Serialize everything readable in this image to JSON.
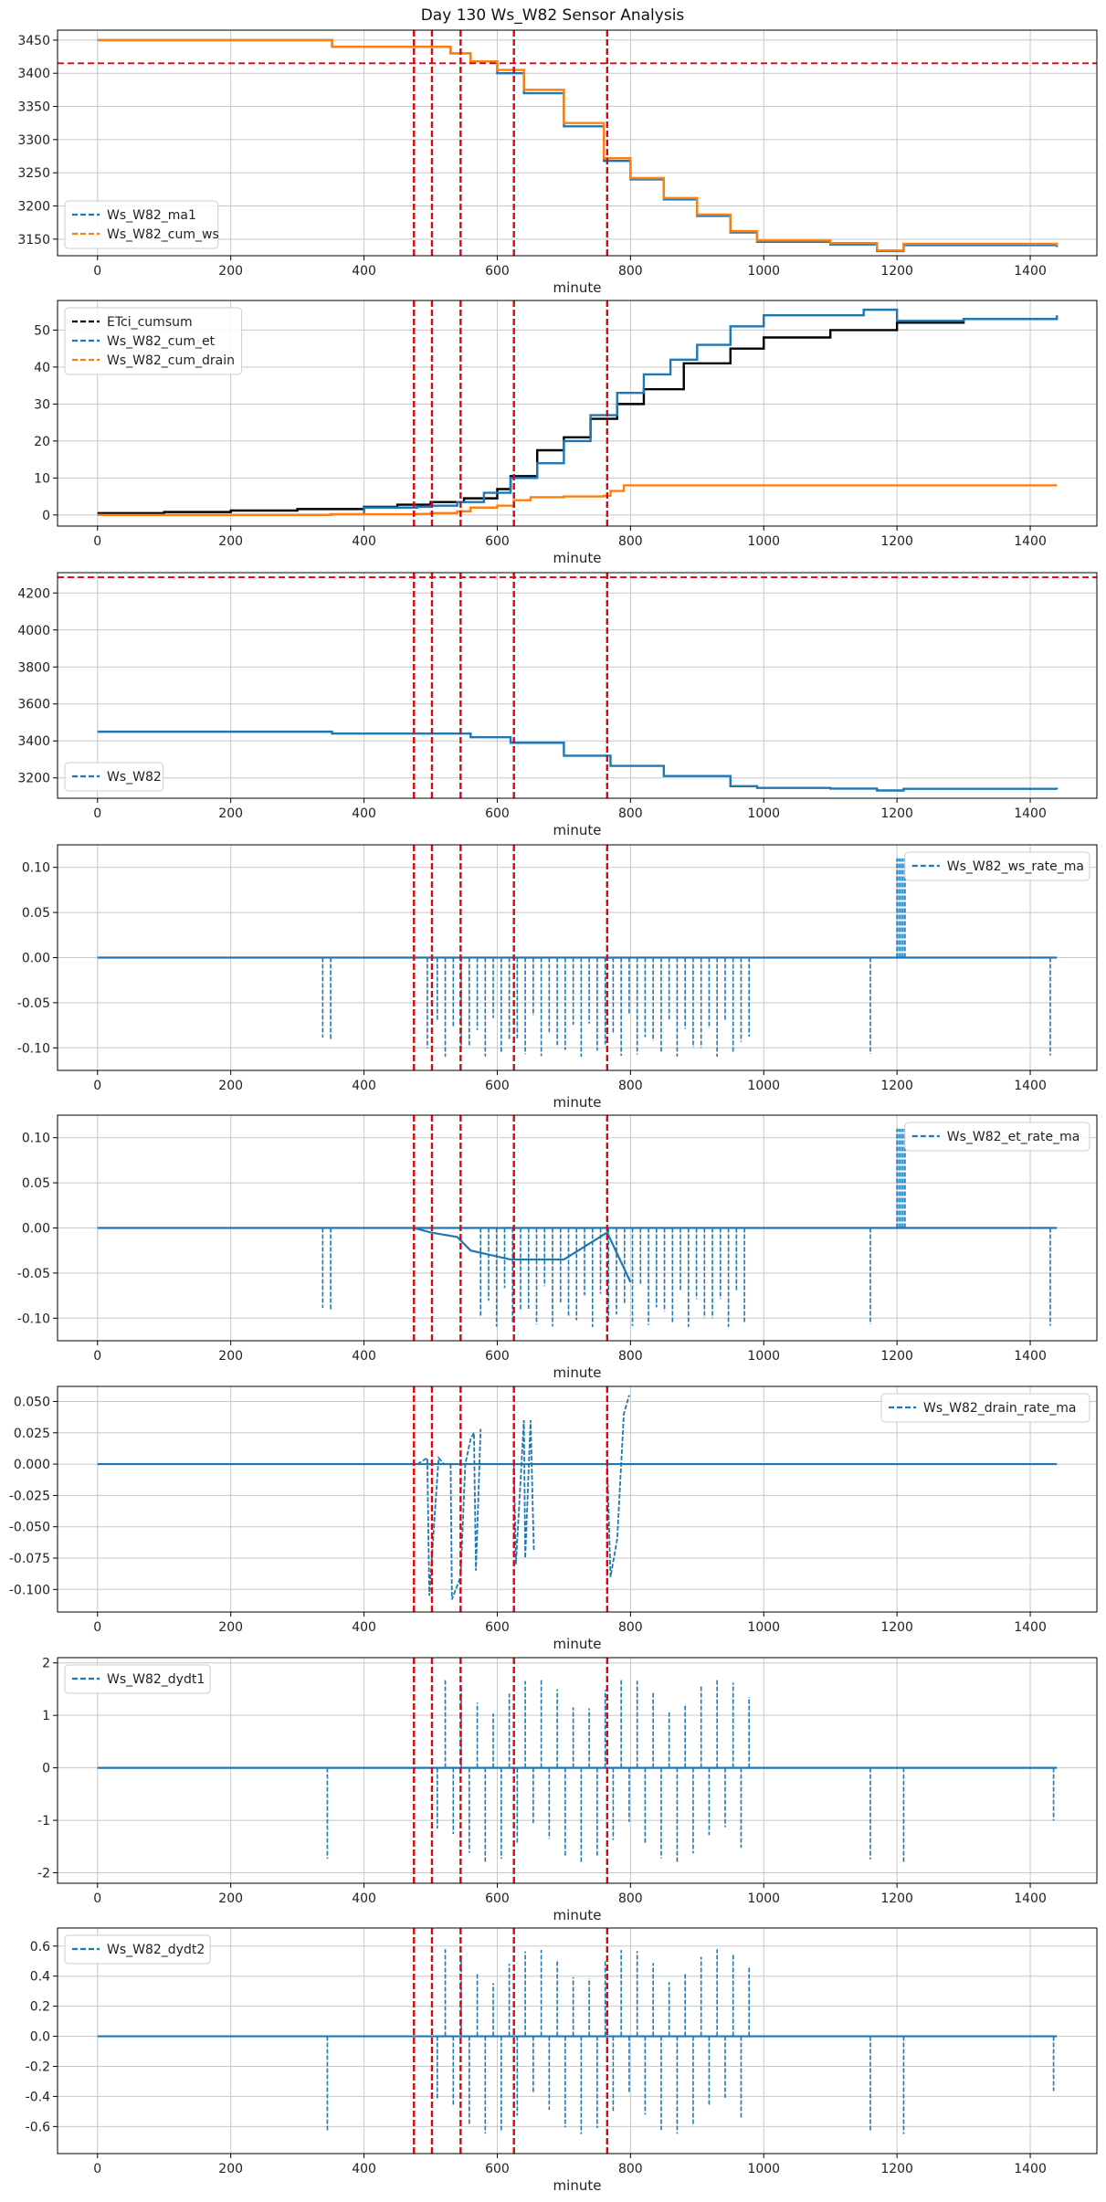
{
  "chart_data": {
    "type": "line",
    "title": "Day 130 Ws_W82 Sensor Analysis",
    "event_lines_x": [
      475,
      502,
      545,
      625,
      765
    ],
    "colors": {
      "blue": "#1f77b4",
      "orange": "#ff7f0e",
      "black": "#000000",
      "red": "#e8000b",
      "grid": "#c8c8c8"
    },
    "panels": [
      {
        "xlabel": "minute",
        "xlim": [
          -60,
          1500
        ],
        "ylim": [
          3125,
          3465
        ],
        "xticks": [
          0,
          200,
          400,
          600,
          800,
          1000,
          1200,
          1400
        ],
        "yticks": [
          3150,
          3200,
          3250,
          3300,
          3350,
          3400,
          3450
        ],
        "hline": 3415,
        "legend_loc": "lower-left",
        "series": [
          {
            "name": "Ws_W82_ma1",
            "color": "blue",
            "style": "dashed",
            "x": [
              0,
              350,
              352,
              500,
              530,
              560,
              600,
              640,
              700,
              760,
              800,
              850,
              900,
              950,
              990,
              1100,
              1170,
              1210,
              1440
            ],
            "y": [
              3450,
              3450,
              3440,
              3440,
              3430,
              3418,
              3400,
              3370,
              3320,
              3268,
              3240,
              3210,
              3185,
              3160,
              3146,
              3142,
              3132,
              3141,
              3138
            ]
          },
          {
            "name": "Ws_W82_cum_ws",
            "color": "orange",
            "style": "solid",
            "x": [
              0,
              350,
              352,
              500,
              530,
              560,
              600,
              640,
              700,
              760,
              800,
              850,
              900,
              950,
              990,
              1100,
              1170,
              1210,
              1440
            ],
            "y": [
              3450,
              3450,
              3440,
              3440,
              3430,
              3418,
              3405,
              3375,
              3325,
              3272,
              3242,
              3212,
              3187,
              3162,
              3148,
              3144,
              3133,
              3143,
              3140
            ]
          }
        ]
      },
      {
        "xlabel": "minute",
        "xlim": [
          -60,
          1500
        ],
        "ylim": [
          -3,
          58
        ],
        "xticks": [
          0,
          200,
          400,
          600,
          800,
          1000,
          1200,
          1400
        ],
        "yticks": [
          0,
          10,
          20,
          30,
          40,
          50
        ],
        "legend_loc": "upper-left",
        "series": [
          {
            "name": "ETci_cumsum",
            "color": "black",
            "style": "solid",
            "x": [
              0,
              100,
              200,
              300,
              400,
              450,
              500,
              550,
              600,
              620,
              660,
              700,
              740,
              780,
              820,
              880,
              950,
              1000,
              1100,
              1200,
              1300,
              1440
            ],
            "y": [
              0.5,
              0.8,
              1.2,
              1.6,
              2.2,
              2.8,
              3.5,
              4.5,
              7,
              10.5,
              17.5,
              21,
              26,
              30,
              34,
              41,
              45,
              48,
              50,
              52,
              53,
              53
            ]
          },
          {
            "name": "Ws_W82_cum_et",
            "color": "blue",
            "style": "solid",
            "x": [
              0,
              350,
              400,
              480,
              500,
              540,
              580,
              620,
              660,
              700,
              740,
              780,
              820,
              860,
              900,
              950,
              1000,
              1100,
              1150,
              1200,
              1300,
              1440
            ],
            "y": [
              0,
              0.2,
              2,
              2.2,
              2.5,
              3.5,
              6,
              10,
              14,
              20,
              27,
              33,
              38,
              42,
              46,
              51,
              54,
              54,
              55.5,
              52.5,
              53,
              54
            ]
          },
          {
            "name": "Ws_W82_cum_drain",
            "color": "orange",
            "style": "solid",
            "x": [
              0,
              350,
              480,
              500,
              540,
              560,
              600,
              625,
              650,
              700,
              760,
              770,
              790,
              800,
              1440
            ],
            "y": [
              0,
              0.2,
              0.3,
              0.5,
              1,
              2,
              2.5,
              4,
              4.8,
              5,
              5.2,
              6.5,
              8,
              8,
              8
            ]
          }
        ]
      },
      {
        "xlabel": "minute",
        "xlim": [
          -60,
          1500
        ],
        "ylim": [
          3090,
          4310
        ],
        "xticks": [
          0,
          200,
          400,
          600,
          800,
          1000,
          1200,
          1400
        ],
        "yticks": [
          3200,
          3400,
          3600,
          3800,
          4000,
          4200
        ],
        "hline": 4285,
        "legend_loc": "lower-left",
        "series": [
          {
            "name": "Ws_W82",
            "color": "blue",
            "style": "solid",
            "x": [
              0,
              350,
              352,
              500,
              560,
              620,
              700,
              770,
              850,
              950,
              990,
              1100,
              1170,
              1210,
              1440
            ],
            "y": [
              3450,
              3450,
              3440,
              3440,
              3420,
              3390,
              3320,
              3265,
              3210,
              3155,
              3146,
              3142,
              3132,
              3141,
              3138
            ]
          }
        ]
      },
      {
        "xlabel": "minute",
        "xlim": [
          -60,
          1500
        ],
        "ylim": [
          -0.125,
          0.125
        ],
        "xticks": [
          0,
          200,
          400,
          600,
          800,
          1000,
          1200,
          1400
        ],
        "yticks": [
          -0.1,
          -0.05,
          0.0,
          0.05,
          0.1
        ],
        "ytick_decimals": 2,
        "legend_loc": "upper-right",
        "series": [
          {
            "name": "Ws_W82_ws_rate_ma",
            "color": "blue",
            "style": "dashed",
            "baseline": 0,
            "spike_ranges": [
              [
                338,
                352
              ],
              [
                495,
                500
              ],
              [
                510,
                980
              ],
              [
                1160,
                1170
              ],
              [
                1430,
                1440
              ]
            ],
            "spike_low": -0.11,
            "spike_high": 0,
            "spike_spacing": 6,
            "pos_spike_range": [
              1200,
              1212
            ],
            "pos_spike_high": 0.11
          }
        ]
      },
      {
        "xlabel": "minute",
        "xlim": [
          -60,
          1500
        ],
        "ylim": [
          -0.125,
          0.125
        ],
        "xticks": [
          0,
          200,
          400,
          600,
          800,
          1000,
          1200,
          1400
        ],
        "yticks": [
          -0.1,
          -0.05,
          0.0,
          0.05,
          0.1
        ],
        "ytick_decimals": 2,
        "legend_loc": "upper-right",
        "series": [
          {
            "name": "Ws_W82_et_rate_ma",
            "color": "blue",
            "style": "dashed",
            "baseline": 0,
            "spike_ranges": [
              [
                338,
                352
              ],
              [
                575,
                980
              ],
              [
                1160,
                1170
              ],
              [
                1430,
                1440
              ]
            ],
            "spike_low": -0.11,
            "spike_high": 0,
            "spike_spacing": 6,
            "pos_spike_range": [
              1200,
              1212
            ],
            "pos_spike_high": 0.11,
            "solid_segment": {
              "x": [
                475,
                500,
                540,
                560,
                620,
                700,
                765,
                800
              ],
              "y": [
                0,
                -0.005,
                -0.01,
                -0.025,
                -0.035,
                -0.035,
                -0.005,
                -0.06
              ]
            }
          }
        ]
      },
      {
        "xlabel": "minute",
        "xlim": [
          -60,
          1500
        ],
        "ylim": [
          -0.118,
          0.062
        ],
        "xticks": [
          0,
          200,
          400,
          600,
          800,
          1000,
          1200,
          1400
        ],
        "yticks": [
          -0.1,
          -0.075,
          -0.05,
          -0.025,
          0.0,
          0.025,
          0.05
        ],
        "ytick_decimals": 3,
        "legend_loc": "upper-right",
        "series": [
          {
            "name": "Ws_W82_drain_rate_ma",
            "color": "blue",
            "style": "dashed",
            "baseline": 0,
            "segments": [
              {
                "x": [
                  480,
                  495,
                  498,
                  512,
                  520
                ],
                "y": [
                  0,
                  0.005,
                  -0.105,
                  0.005,
                  0
                ]
              },
              {
                "x": [
                  530,
                  532,
                  545,
                  552,
                  560,
                  565,
                  568,
                  575
                ],
                "y": [
                  0,
                  -0.108,
                  -0.09,
                  0,
                  0.02,
                  0.025,
                  -0.085,
                  0.028
                ]
              },
              {
                "x": [
                  625,
                  628,
                  640,
                  642,
                  650,
                  655
                ],
                "y": [
                  0,
                  -0.08,
                  0.035,
                  -0.075,
                  0.035,
                  -0.07
                ]
              },
              {
                "x": [
                  765,
                  770,
                  780,
                  790,
                  798
                ],
                "y": [
                  0,
                  -0.09,
                  -0.06,
                  0.04,
                  0.055
                ]
              }
            ]
          }
        ]
      },
      {
        "xlabel": "minute",
        "xlim": [
          -60,
          1500
        ],
        "ylim": [
          -2.2,
          2.1
        ],
        "xticks": [
          0,
          200,
          400,
          600,
          800,
          1000,
          1200,
          1400
        ],
        "yticks": [
          -2,
          -1,
          0,
          1,
          2
        ],
        "ytick_decimals": 0,
        "legend_loc": "upper-left",
        "series": [
          {
            "name": "Ws_W82_dydt1",
            "color": "blue",
            "style": "dashed",
            "baseline": 0,
            "spike_ranges": [
              [
                345,
                352
              ],
              [
                510,
                980
              ],
              [
                1160,
                1165
              ],
              [
                1210,
                1215
              ],
              [
                1435,
                1440
              ]
            ],
            "spike_low": -1.8,
            "spike_high": 1.7,
            "spike_spacing": 12
          }
        ]
      },
      {
        "xlabel": "minute",
        "xlim": [
          -60,
          1500
        ],
        "ylim": [
          -0.78,
          0.72
        ],
        "xticks": [
          0,
          200,
          400,
          600,
          800,
          1000,
          1200,
          1400
        ],
        "yticks": [
          -0.6,
          -0.4,
          -0.2,
          0.0,
          0.2,
          0.4,
          0.6
        ],
        "ytick_decimals": 1,
        "legend_loc": "upper-left",
        "series": [
          {
            "name": "Ws_W82_dydt2",
            "color": "blue",
            "style": "dashed",
            "baseline": 0,
            "spike_ranges": [
              [
                345,
                352
              ],
              [
                510,
                980
              ],
              [
                1160,
                1165
              ],
              [
                1210,
                1215
              ],
              [
                1435,
                1440
              ]
            ],
            "spike_low": -0.65,
            "spike_high": 0.58,
            "spike_spacing": 12
          }
        ]
      }
    ]
  }
}
